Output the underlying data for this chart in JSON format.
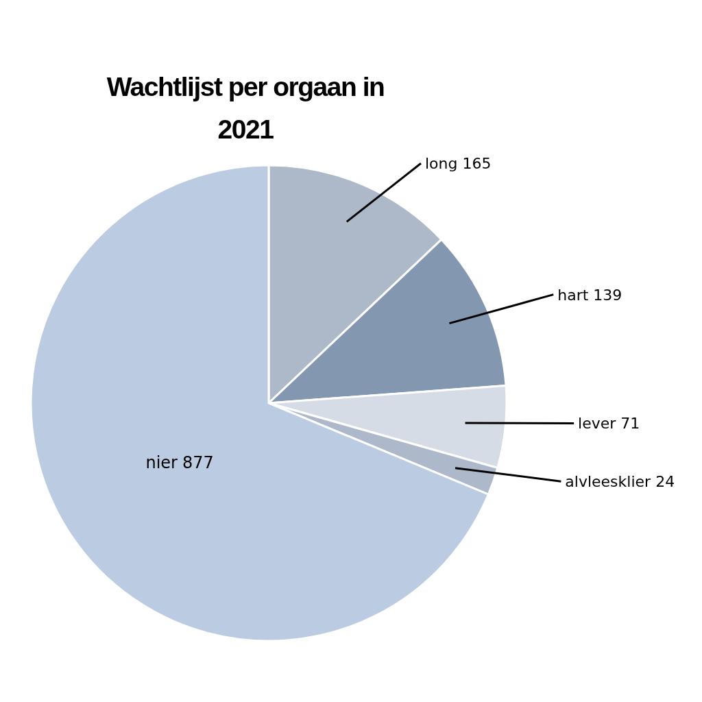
{
  "chart_data": {
    "type": "pie",
    "title": "Wachtlijst per orgaan in 2021",
    "categories": [
      "long",
      "hart",
      "lever",
      "alvleesklier",
      "nier"
    ],
    "values": [
      165,
      139,
      71,
      24,
      877
    ],
    "colors": [
      "#adb8c9",
      "#8497b0",
      "#d6dce5",
      "#adb9ca",
      "#bacbe2"
    ],
    "data_labels": true,
    "legend": false
  }
}
